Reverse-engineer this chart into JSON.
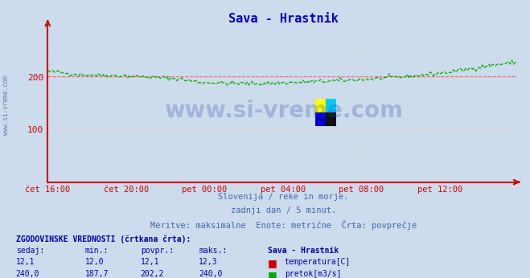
{
  "title": "Sava - Hrastnik",
  "title_color": "#0000cc",
  "bg_color": "#ccdcec",
  "plot_bg_color": "#ccdcec",
  "watermark_text": "www.si-vreme.com",
  "watermark_color": "#2244aa",
  "watermark_alpha": 0.25,
  "subtitle_lines": [
    "Slovenija / reke in morje.",
    "zadnji dan / 5 minut.",
    "Meritve: maksimalne  Enote: metrične  Črta: povprečje"
  ],
  "subtitle_color": "#4466aa",
  "left_label": "www.si-vreme.com",
  "left_label_color": "#4466aa",
  "xlabel_ticks": [
    "čet 16:00",
    "čet 20:00",
    "pet 00:00",
    "pet 04:00",
    "pet 08:00",
    "pet 12:00"
  ],
  "xlabel_tick_positions": [
    0,
    48,
    96,
    144,
    192,
    240
  ],
  "total_points": 288,
  "ylim": [
    0,
    300
  ],
  "yticks": [
    100,
    200
  ],
  "grid_major_color": "#ffaaaa",
  "grid_minor_color": "#ffcccc",
  "axis_color": "#cc0000",
  "flow_color": "#00aa00",
  "flow_avg_color": "#cc0000",
  "flow_avg_value": 202.2,
  "flow_dip_value": 187.7,
  "legend_title": "ZGODOVINSKE VREDNOSTI (črtkana črta):",
  "legend_col_headers": [
    "sedaj:",
    "min.:",
    "povpr.:",
    "maks.:"
  ],
  "legend_station": "Sava - Hrastnik",
  "legend_temp": [
    "12,1",
    "12,0",
    "12,1",
    "12,3",
    "temperatura[C]"
  ],
  "legend_flow": [
    "240,0",
    "187,7",
    "202,2",
    "240,0",
    "pretok[m3/s]"
  ],
  "legend_color": "#0000aa",
  "temp_swatch_color": "#cc0000",
  "flow_swatch_color": "#00aa00",
  "logo_colors": [
    "#ffff00",
    "#00ccff",
    "#0000cc",
    "#111111"
  ]
}
